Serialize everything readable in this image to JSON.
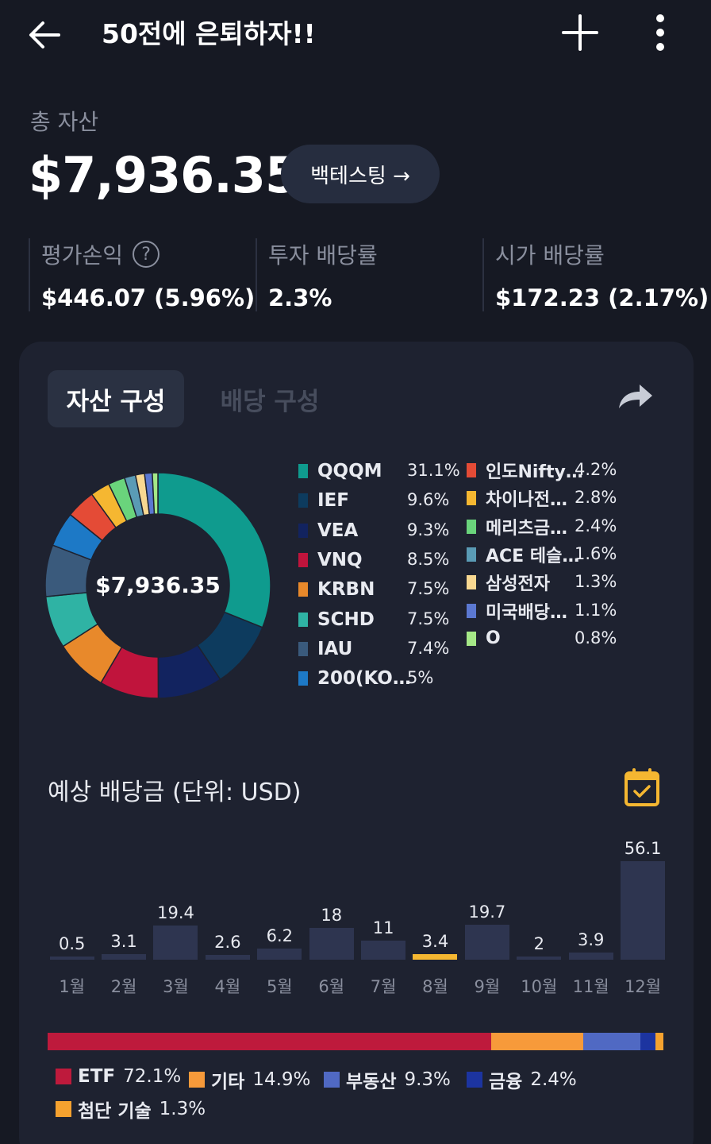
{
  "header": {
    "title": "50전에 은퇴하자!!"
  },
  "summary": {
    "total_label": "총 자산",
    "total_value": "$7,936.35",
    "backtest_label": "백테스팅 →",
    "stats": [
      {
        "label": "평가손익",
        "value": "$446.07 (5.96%)"
      },
      {
        "label": "투자 배당률",
        "value": "2.3%"
      },
      {
        "label": "시가 배당률",
        "value": "$172.23 (2.17%)"
      }
    ]
  },
  "tabs": [
    {
      "label": "자산 구성"
    },
    {
      "label": "배당 구성"
    }
  ],
  "allocation": {
    "center_label": "$7,936.35",
    "holdings": [
      {
        "name": "QQQM",
        "pct": "31.1%",
        "value": 31.1,
        "color": "#0f9b8e"
      },
      {
        "name": "IEF",
        "pct": "9.6%",
        "value": 9.6,
        "color": "#0d3b5e"
      },
      {
        "name": "VEA",
        "pct": "9.3%",
        "value": 9.3,
        "color": "#12235f"
      },
      {
        "name": "VNQ",
        "pct": "8.5%",
        "value": 8.5,
        "color": "#c0143c"
      },
      {
        "name": "KRBN",
        "pct": "7.5%",
        "value": 7.5,
        "color": "#e8892b"
      },
      {
        "name": "SCHD",
        "pct": "7.5%",
        "value": 7.5,
        "color": "#2fb3a4"
      },
      {
        "name": "IAU",
        "pct": "7.4%",
        "value": 7.4,
        "color": "#3a5a7c"
      },
      {
        "name": "200(KO…",
        "pct": "5%",
        "value": 5.0,
        "color": "#1d79c6"
      },
      {
        "name": "인도Nifty…",
        "pct": "4.2%",
        "value": 4.2,
        "color": "#e44b36"
      },
      {
        "name": "차이나전…",
        "pct": "2.8%",
        "value": 2.8,
        "color": "#f5b731"
      },
      {
        "name": "메리츠금…",
        "pct": "2.4%",
        "value": 2.4,
        "color": "#6ad47c"
      },
      {
        "name": "ACE 테슬…",
        "pct": "1.6%",
        "value": 1.6,
        "color": "#5a9bb5"
      },
      {
        "name": "삼성전자",
        "pct": "1.3%",
        "value": 1.3,
        "color": "#f8d891"
      },
      {
        "name": "미국배당…",
        "pct": "1.1%",
        "value": 1.1,
        "color": "#5b78d1"
      },
      {
        "name": "O",
        "pct": "0.8%",
        "value": 0.8,
        "color": "#a5e887"
      }
    ]
  },
  "dividends": {
    "title": "예상 배당금 (단위: USD)",
    "chart_data": {
      "type": "bar",
      "categories": [
        "1월",
        "2월",
        "3월",
        "4월",
        "5월",
        "6월",
        "7월",
        "8월",
        "9월",
        "10월",
        "11월",
        "12월"
      ],
      "values": [
        0.5,
        3.1,
        19.4,
        2.6,
        6.2,
        18,
        11,
        3.4,
        19.7,
        2,
        3.9,
        56.1
      ],
      "value_labels": [
        "0.5",
        "3.1",
        "19.4",
        "2.6",
        "6.2",
        "18",
        "11",
        "3.4",
        "19.7",
        "2",
        "3.9",
        "56.1"
      ],
      "highlight": "8월",
      "colors": {
        "bar": "#2e3550",
        "highlight": "#f5b731"
      }
    }
  },
  "sectors": [
    {
      "name": "ETF",
      "pct": "72.1%",
      "value": 72.1,
      "color": "#be1a3c"
    },
    {
      "name": "기타",
      "pct": "14.9%",
      "value": 14.9,
      "color": "#f79a3a"
    },
    {
      "name": "부동산",
      "pct": "9.3%",
      "value": 9.3,
      "color": "#5069c3"
    },
    {
      "name": "금융",
      "pct": "2.4%",
      "value": 2.4,
      "color": "#1c34a0"
    },
    {
      "name": "첨단 기술",
      "pct": "1.3%",
      "value": 1.3,
      "color": "#f5a22f"
    }
  ]
}
